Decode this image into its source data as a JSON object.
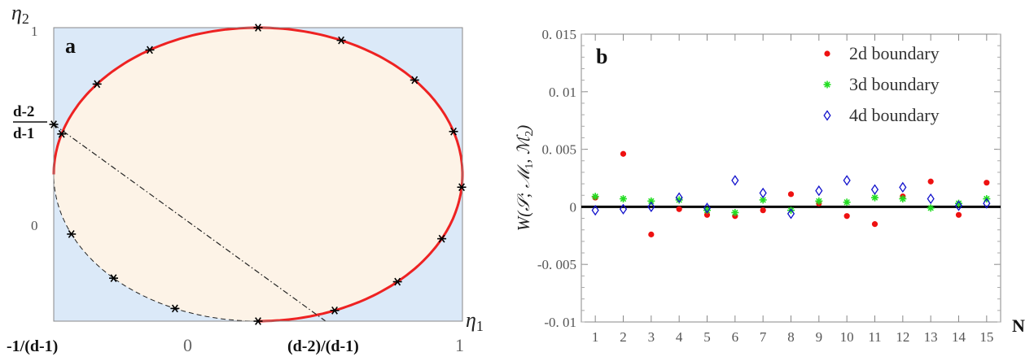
{
  "chart_data": [
    {
      "type": "scatter",
      "panel_label": "a",
      "xlabel": "η1",
      "ylabel": "η2",
      "x_tick_labels": [
        "-1/(d-1)",
        "0",
        "(d-2)/(d-1)",
        "1"
      ],
      "y_tick_labels": [
        "1",
        "0"
      ],
      "y_special_label": {
        "numerator": "d-2",
        "denominator": "d-1"
      },
      "colors": {
        "background": "#dbe9f8",
        "region": "#fdf3e7",
        "boundary": "#ee2222",
        "marker": "#000000"
      },
      "boundary_markers_angles_deg": [
        90,
        66,
        40,
        17,
        -5,
        -26,
        -47,
        -68,
        -90,
        -114,
        -135,
        -156,
        180,
        164,
        142,
        122
      ]
    },
    {
      "type": "scatter",
      "panel_label": "b",
      "xlabel": "N",
      "ylabel": "W(S;M1,M2)",
      "x": [
        1,
        2,
        3,
        4,
        5,
        6,
        7,
        8,
        9,
        10,
        11,
        12,
        13,
        14,
        15
      ],
      "xlim": [
        0.5,
        15.5
      ],
      "ylim": [
        -0.01,
        0.015
      ],
      "y_ticks": [
        {
          "value": 0.015,
          "label": "0. 015"
        },
        {
          "value": 0.01,
          "label": "0. 01"
        },
        {
          "value": 0.005,
          "label": "0. 005"
        },
        {
          "value": 0,
          "label": "0"
        },
        {
          "value": -0.005,
          "label": "-0. 005"
        },
        {
          "value": -0.01,
          "label": "-0. 01"
        }
      ],
      "legend_position": "top-right",
      "series": [
        {
          "name": "2d boundary",
          "marker": "dot",
          "color": "#ee1111",
          "values": [
            0.0008,
            0.0046,
            -0.0024,
            -0.0002,
            -0.0007,
            -0.0008,
            -0.0003,
            0.0011,
            0.0003,
            -0.0008,
            -0.0015,
            0.0009,
            0.0022,
            -0.0007,
            0.0021
          ]
        },
        {
          "name": "3d boundary",
          "marker": "star",
          "color": "#22dd22",
          "values": [
            0.0009,
            0.0007,
            0.0005,
            0.0006,
            -0.0003,
            -0.0005,
            0.0006,
            -0.0003,
            0.0005,
            0.0004,
            0.0008,
            0.0007,
            -0.0001,
            0.0003,
            0.0007
          ]
        },
        {
          "name": "4d boundary",
          "marker": "diamond",
          "color": "#1111cc",
          "values": [
            -0.0003,
            -0.0002,
            0.0,
            0.0008,
            -0.0001,
            0.0023,
            0.0012,
            -0.0006,
            0.0014,
            0.0023,
            0.0015,
            0.0017,
            0.0007,
            0.0001,
            0.0003
          ]
        }
      ]
    }
  ]
}
